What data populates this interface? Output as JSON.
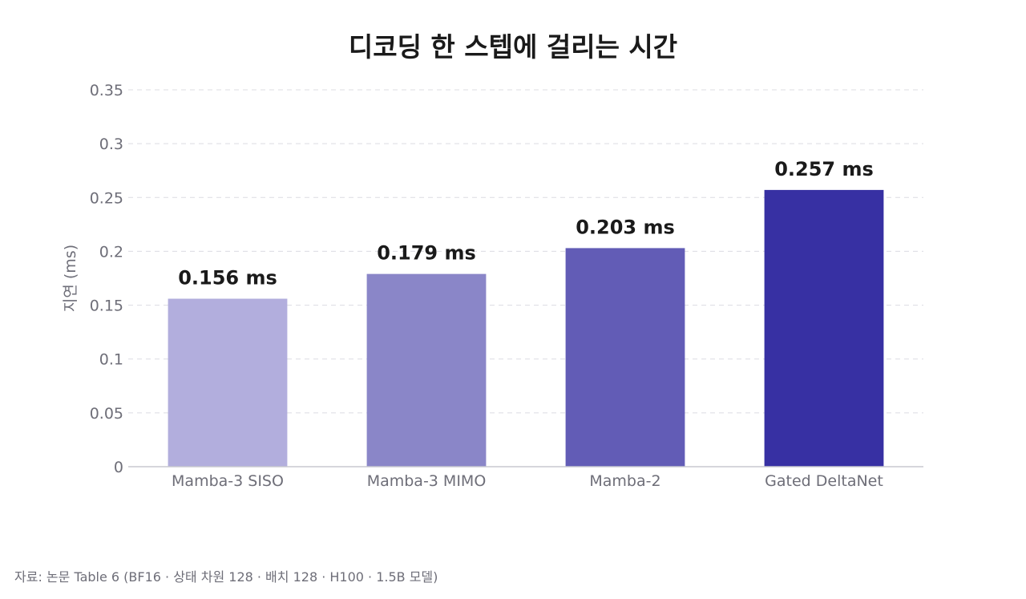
{
  "chart_data": {
    "type": "bar",
    "title": "디코딩 한 스텝에 걸리는 시간",
    "ylabel": "지연 (ms)",
    "xlabel": "",
    "categories": [
      "Mamba-3 SISO",
      "Mamba-3 MIMO",
      "Mamba-2",
      "Gated DeltaNet"
    ],
    "values": [
      0.156,
      0.179,
      0.203,
      0.257
    ],
    "data_labels": [
      "0.156 ms",
      "0.179 ms",
      "0.203 ms",
      "0.257 ms"
    ],
    "bar_colors": [
      "#b2aedd",
      "#8a86c8",
      "#625cb6",
      "#3730a3"
    ],
    "ylim": [
      0,
      0.35
    ],
    "yticks": [
      0,
      0.05,
      0.1,
      0.15,
      0.2,
      0.25,
      0.3,
      0.35
    ],
    "ytick_labels": [
      "0",
      "0.05",
      "0.1",
      "0.15",
      "0.2",
      "0.25",
      "0.3",
      "0.35"
    ],
    "grid": true,
    "legend": "none"
  },
  "source_note": "자료: 논문 Table 6 (BF16 · 상태 차원 128 · 배치 128 · H100 · 1.5B 모델)"
}
